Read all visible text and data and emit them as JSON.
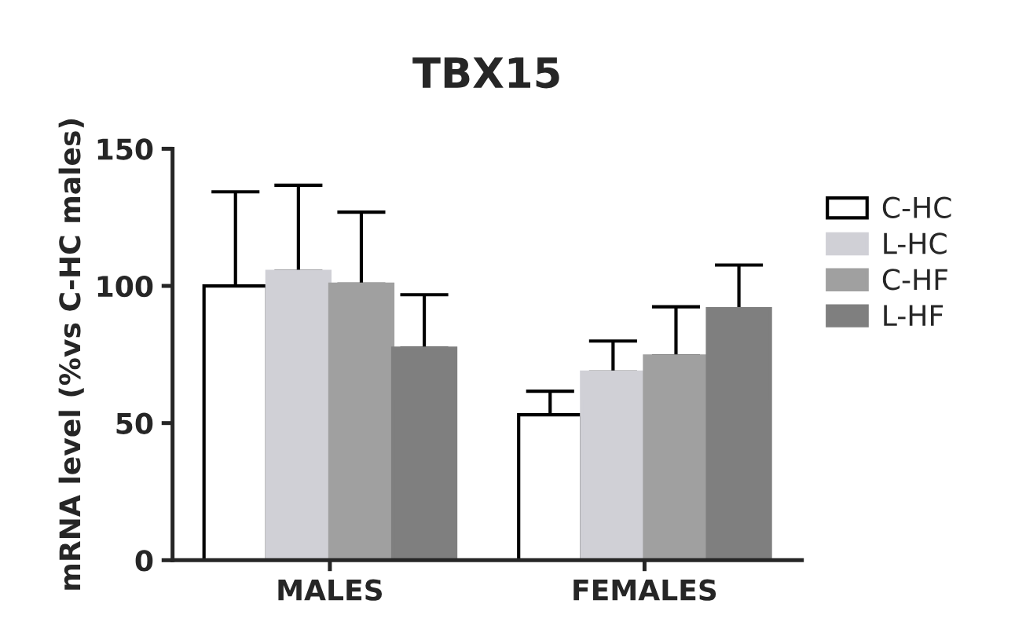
{
  "chart_data": {
    "type": "bar",
    "title": "TBX15",
    "ylabel": "mRNA level (%vs C-HC males)",
    "categories": [
      "MALES",
      "FEMALES"
    ],
    "series": [
      {
        "name": "C-HC",
        "color": "#ffffff",
        "values": [
          100,
          53
        ],
        "errors": [
          [
            100,
            134.3
          ],
          [
            53,
            61.6
          ]
        ]
      },
      {
        "name": "L-HC",
        "color": "#d0d0d6",
        "values": [
          105.3,
          68.6
        ],
        "errors": [
          [
            105.3,
            136.7
          ],
          [
            68.6,
            79.9
          ]
        ]
      },
      {
        "name": "C-HF",
        "color": "#a0a0a0",
        "values": [
          100.6,
          74.4
        ],
        "errors": [
          [
            100.6,
            126.9
          ],
          [
            74.4,
            92.4
          ]
        ]
      },
      {
        "name": "L-HF",
        "color": "#7f7f7f",
        "values": [
          77.3,
          91.7
        ],
        "errors": [
          [
            77.3,
            96.8
          ],
          [
            91.7,
            107.6
          ]
        ]
      }
    ],
    "ylim": [
      0,
      150
    ],
    "yticks": [
      0,
      50,
      100,
      150
    ],
    "grid": false,
    "legend": "right"
  }
}
